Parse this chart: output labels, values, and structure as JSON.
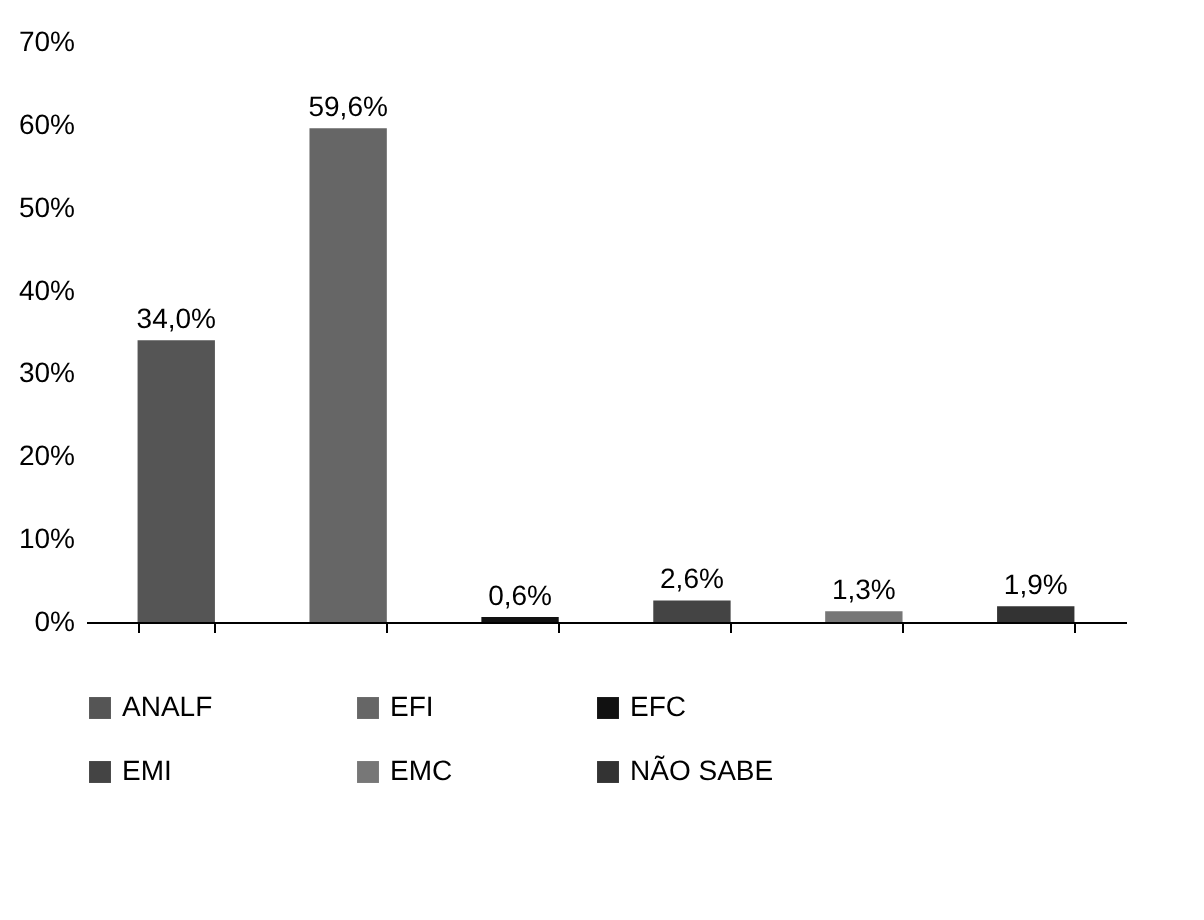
{
  "chart_data": {
    "type": "bar",
    "categories": [
      null,
      null,
      null,
      null,
      null,
      null
    ],
    "series": [
      {
        "name": "ANALF",
        "color": "#555555",
        "values": [
          34.0,
          null,
          null,
          null,
          null,
          null
        ],
        "value_labels": [
          "34,0%",
          null,
          null,
          null,
          null,
          null
        ]
      },
      {
        "name": "EFI",
        "color": "#666666",
        "values": [
          null,
          59.6,
          null,
          null,
          null,
          null
        ],
        "value_labels": [
          null,
          "59,6%",
          null,
          null,
          null,
          null
        ]
      },
      {
        "name": "EFC",
        "color": "#111111",
        "values": [
          null,
          null,
          0.6,
          null,
          null,
          null
        ],
        "value_labels": [
          null,
          null,
          "0,6%",
          null,
          null,
          null
        ]
      },
      {
        "name": "EMI",
        "color": "#444444",
        "values": [
          null,
          null,
          null,
          2.6,
          null,
          null
        ],
        "value_labels": [
          null,
          null,
          null,
          "2,6%",
          null,
          null
        ]
      },
      {
        "name": "EMC",
        "color": "#777777",
        "values": [
          null,
          null,
          null,
          null,
          1.3,
          null
        ],
        "value_labels": [
          null,
          null,
          null,
          null,
          "1,3%",
          null
        ]
      },
      {
        "name": "NÃO SABE",
        "color": "#333333",
        "values": [
          null,
          null,
          null,
          null,
          null,
          1.9
        ],
        "value_labels": [
          null,
          null,
          null,
          null,
          null,
          "1,9%"
        ]
      }
    ],
    "ylim": [
      0,
      70
    ],
    "yticks": [
      {
        "value": 0,
        "label": "0%"
      },
      {
        "value": 10,
        "label": "10%"
      },
      {
        "value": 20,
        "label": "20%"
      },
      {
        "value": 30,
        "label": "30%"
      },
      {
        "value": 40,
        "label": "40%"
      },
      {
        "value": 50,
        "label": "50%"
      },
      {
        "value": 60,
        "label": "60%"
      },
      {
        "value": 70,
        "label": "70%"
      }
    ],
    "tick_labels": "y",
    "grid": false,
    "legend": "bottom"
  }
}
